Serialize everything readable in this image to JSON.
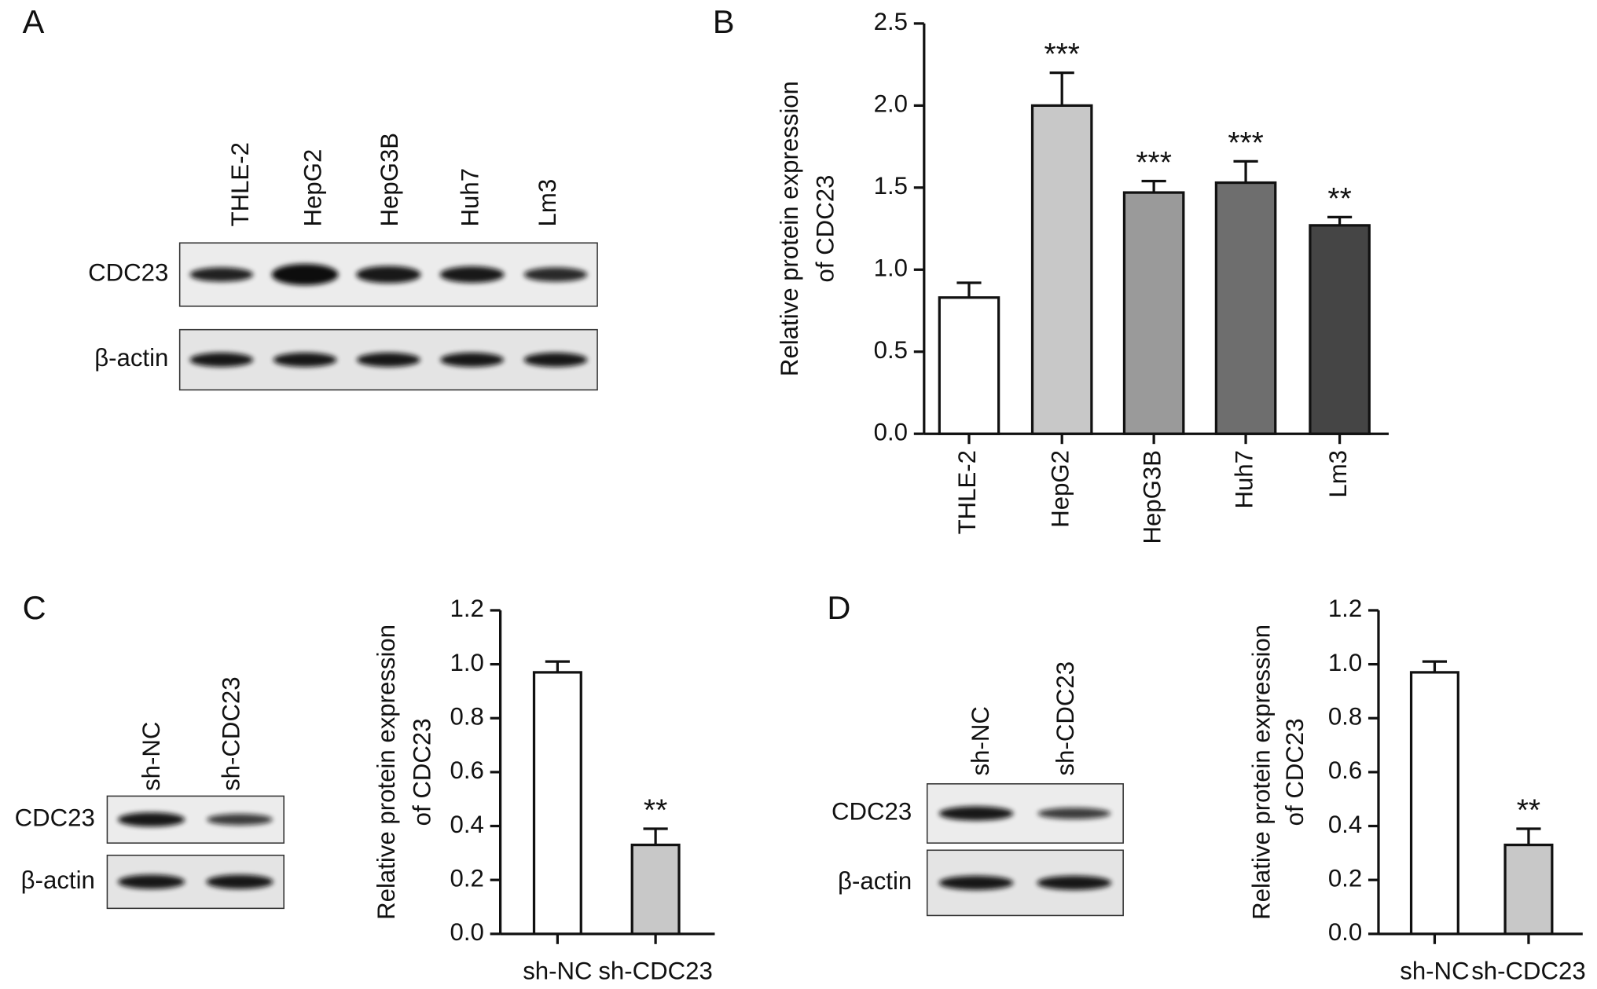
{
  "panel_labels": [
    "A",
    "B",
    "C",
    "D"
  ],
  "blots": [
    {
      "lanes": [
        "THLE-2",
        "HepG2",
        "HepG3B",
        "Huh7",
        "Lm3"
      ],
      "rows": [
        "CDC23",
        "β-actin"
      ]
    },
    {
      "lanes": [
        "sh-NC",
        "sh-CDC23"
      ],
      "rows": [
        "CDC23",
        "β-actin"
      ]
    },
    {
      "lanes": [
        "sh-NC",
        "sh-CDC23"
      ],
      "rows": [
        "CDC23",
        "β-actin"
      ]
    }
  ],
  "chart_data": [
    {
      "type": "bar",
      "ylabel": [
        "Relative protein expression",
        "of CDC23"
      ],
      "categories": [
        "THLE-2",
        "HepG2",
        "HepG3B",
        "Huh7",
        "Lm3"
      ],
      "values": [
        0.83,
        2.0,
        1.47,
        1.53,
        1.27
      ],
      "errors": [
        0.09,
        0.2,
        0.07,
        0.13,
        0.05
      ],
      "annotations": [
        null,
        "***",
        "***",
        "***",
        "**"
      ],
      "colors": [
        "#ffffff",
        "#c8c8c8",
        "#9a9a9a",
        "#6e6e6e",
        "#454545"
      ],
      "ylim": [
        0,
        2.5
      ],
      "yticks": [
        {
          "value": 0,
          "label": "0.0"
        },
        0.5,
        {
          "value": 1,
          "label": "1.0"
        },
        1.5,
        {
          "value": 2,
          "label": "2.0"
        },
        2.5
      ],
      "rotate_categories": true
    },
    {
      "type": "bar",
      "ylabel": [
        "Relative protein expression",
        "of CDC23"
      ],
      "categories": [
        "sh-NC",
        "sh-CDC23"
      ],
      "values": [
        0.97,
        0.33
      ],
      "errors": [
        0.04,
        0.06
      ],
      "annotations": [
        null,
        "**"
      ],
      "colors": [
        "#ffffff",
        "#c8c8c8"
      ],
      "ylim": [
        0,
        1.2
      ],
      "yticks": [
        {
          "value": 0,
          "label": "0.0"
        },
        0.2,
        0.4,
        0.6,
        0.8,
        {
          "value": 1,
          "label": "1.0"
        },
        1.2
      ],
      "rotate_categories": false
    },
    {
      "type": "bar",
      "ylabel": [
        "Relative protein expression",
        "of CDC23"
      ],
      "categories": [
        "sh-NC",
        "sh-CDC23"
      ],
      "values": [
        0.97,
        0.33
      ],
      "errors": [
        0.04,
        0.06
      ],
      "annotations": [
        null,
        "**"
      ],
      "colors": [
        "#ffffff",
        "#c8c8c8"
      ],
      "ylim": [
        0,
        1.2
      ],
      "yticks": [
        {
          "value": 0,
          "label": "0.0"
        },
        0.2,
        0.4,
        0.6,
        0.8,
        {
          "value": 1,
          "label": "1.0"
        },
        1.2
      ],
      "rotate_categories": false
    }
  ]
}
